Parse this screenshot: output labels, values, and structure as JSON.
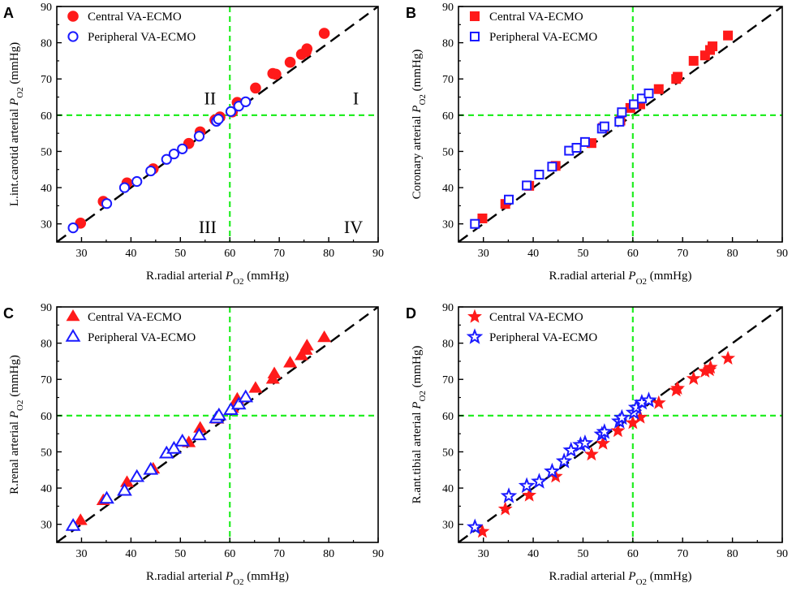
{
  "chart_data": [
    {
      "type": "scatter",
      "panel": "A",
      "marker": "circle",
      "xlabel": {
        "pre": "R.radial arterial ",
        "var": "P",
        "sub": "O2",
        "post": " (mmHg)"
      },
      "ylabel": {
        "pre": "L.int.carotid arterial ",
        "var": "P",
        "sub": "O2",
        "post": " (mmHg)"
      },
      "xlim": [
        25,
        90
      ],
      "ylim": [
        25,
        90
      ],
      "xticks": [
        "30",
        "40",
        "50",
        "60",
        "70",
        "80",
        "90"
      ],
      "yticks": [
        "30",
        "40",
        "50",
        "60",
        "70",
        "80",
        "90"
      ],
      "threshold": 60,
      "identity_line": true,
      "legend_position": "top-left",
      "quadrant_labels": {
        "I": "I",
        "II": "II",
        "III": "III",
        "IV": "IV"
      },
      "series": [
        {
          "name": "Central VA-ECMO",
          "color": "#ff1a1a",
          "filled": true,
          "points": [
            [
              29.8,
              30.2
            ],
            [
              34.4,
              36.2
            ],
            [
              39.2,
              41.3
            ],
            [
              44.5,
              45.2
            ],
            [
              51.7,
              52.2
            ],
            [
              54.0,
              55.4
            ],
            [
              57.0,
              58.7
            ],
            [
              58.0,
              59.5
            ],
            [
              60.5,
              60.9
            ],
            [
              61.5,
              63.5
            ],
            [
              65.2,
              67.5
            ],
            [
              68.7,
              71.5
            ],
            [
              69.3,
              71.3
            ],
            [
              72.2,
              74.6
            ],
            [
              74.5,
              76.8
            ],
            [
              75.4,
              77.5
            ],
            [
              75.6,
              78.3
            ],
            [
              79.1,
              82.6
            ]
          ]
        },
        {
          "name": "Peripheral VA-ECMO",
          "color": "#1a1aff",
          "filled": false,
          "points": [
            [
              28.3,
              28.9
            ],
            [
              35.1,
              35.6
            ],
            [
              38.7,
              40.0
            ],
            [
              41.2,
              41.7
            ],
            [
              44.0,
              44.6
            ],
            [
              47.2,
              47.8
            ],
            [
              48.7,
              49.3
            ],
            [
              50.4,
              50.7
            ],
            [
              53.8,
              54.2
            ],
            [
              57.3,
              58.3
            ],
            [
              57.7,
              58.9
            ],
            [
              60.2,
              61.0
            ],
            [
              61.8,
              62.5
            ],
            [
              63.2,
              63.7
            ]
          ]
        }
      ]
    },
    {
      "type": "scatter",
      "panel": "B",
      "marker": "square",
      "xlabel": {
        "pre": "R.radial arterial ",
        "var": "P",
        "sub": "O2",
        "post": " (mmHg)"
      },
      "ylabel": {
        "pre": "Coronary arterial ",
        "var": "P",
        "sub": "O2",
        "post": " (mmHg)"
      },
      "xlim": [
        25,
        90
      ],
      "ylim": [
        25,
        90
      ],
      "xticks": [
        "30",
        "40",
        "50",
        "60",
        "70",
        "80",
        "90"
      ],
      "yticks": [
        "30",
        "40",
        "50",
        "60",
        "70",
        "80",
        "90"
      ],
      "threshold": 60,
      "identity_line": true,
      "legend_position": "top-left",
      "series": [
        {
          "name": "Central VA-ECMO",
          "color": "#ff1a1a",
          "filled": true,
          "points": [
            [
              29.8,
              31.5
            ],
            [
              34.4,
              35.5
            ],
            [
              39.2,
              40.5
            ],
            [
              44.5,
              46.0
            ],
            [
              51.7,
              52.3
            ],
            [
              54.0,
              56.5
            ],
            [
              57.5,
              58.5
            ],
            [
              59.5,
              62.0
            ],
            [
              61.5,
              63.0
            ],
            [
              65.2,
              67.2
            ],
            [
              68.7,
              70.0
            ],
            [
              69.0,
              70.6
            ],
            [
              72.2,
              75.0
            ],
            [
              74.5,
              76.5
            ],
            [
              75.5,
              78.0
            ],
            [
              76.0,
              79.0
            ],
            [
              79.1,
              82.0
            ]
          ]
        },
        {
          "name": "Peripheral VA-ECMO",
          "color": "#1a1aff",
          "filled": false,
          "points": [
            [
              28.3,
              30.0
            ],
            [
              35.1,
              36.7
            ],
            [
              38.7,
              40.6
            ],
            [
              41.2,
              43.6
            ],
            [
              43.8,
              45.8
            ],
            [
              47.2,
              50.2
            ],
            [
              48.7,
              51.0
            ],
            [
              50.4,
              52.6
            ],
            [
              53.8,
              56.3
            ],
            [
              54.3,
              56.9
            ],
            [
              57.3,
              58.2
            ],
            [
              57.8,
              60.8
            ],
            [
              60.2,
              63.0
            ],
            [
              61.8,
              64.6
            ],
            [
              63.2,
              66.0
            ]
          ]
        }
      ]
    },
    {
      "type": "scatter",
      "panel": "C",
      "marker": "triangle",
      "xlabel": {
        "pre": "R.radial arterial ",
        "var": "P",
        "sub": "O2",
        "post": " (mmHg)"
      },
      "ylabel": {
        "pre": "R.renal arterial ",
        "var": "P",
        "sub": "O2",
        "post": " (mmHg)"
      },
      "xlim": [
        25,
        90
      ],
      "ylim": [
        25,
        90
      ],
      "xticks": [
        "30",
        "40",
        "50",
        "60",
        "70",
        "80",
        "90"
      ],
      "yticks": [
        "30",
        "40",
        "50",
        "60",
        "70",
        "80",
        "90"
      ],
      "threshold": 60,
      "identity_line": true,
      "legend_position": "top-left",
      "series": [
        {
          "name": "Central VA-ECMO",
          "color": "#ff1a1a",
          "filled": true,
          "points": [
            [
              29.8,
              31.0
            ],
            [
              34.4,
              36.5
            ],
            [
              39.2,
              41.5
            ],
            [
              44.5,
              45.2
            ],
            [
              51.7,
              52.5
            ],
            [
              54.0,
              56.5
            ],
            [
              57.5,
              59.0
            ],
            [
              60.5,
              62.0
            ],
            [
              61.5,
              64.5
            ],
            [
              65.2,
              67.5
            ],
            [
              68.7,
              70.0
            ],
            [
              69.0,
              71.5
            ],
            [
              72.2,
              74.5
            ],
            [
              74.5,
              76.5
            ],
            [
              75.4,
              78.0
            ],
            [
              75.6,
              79.2
            ],
            [
              79.1,
              81.5
            ]
          ]
        },
        {
          "name": "Peripheral VA-ECMO",
          "color": "#1a1aff",
          "filled": false,
          "points": [
            [
              28.3,
              29.5
            ],
            [
              35.1,
              37.0
            ],
            [
              38.7,
              39.2
            ],
            [
              41.2,
              43.0
            ],
            [
              44.0,
              45.0
            ],
            [
              47.2,
              49.5
            ],
            [
              48.7,
              50.8
            ],
            [
              50.4,
              52.8
            ],
            [
              53.8,
              54.5
            ],
            [
              57.3,
              59.2
            ],
            [
              57.8,
              60.0
            ],
            [
              60.2,
              61.5
            ],
            [
              61.8,
              63.0
            ],
            [
              63.2,
              65.0
            ]
          ]
        }
      ]
    },
    {
      "type": "scatter",
      "panel": "D",
      "marker": "star",
      "xlabel": {
        "pre": "R.radial arterial ",
        "var": "P",
        "sub": "O2",
        "post": " (mmHg)"
      },
      "ylabel": {
        "pre": "R.ant.tibial arterial ",
        "var": "P",
        "sub": "O2",
        "post": " (mmHg)"
      },
      "xlim": [
        25,
        90
      ],
      "ylim": [
        25,
        90
      ],
      "xticks": [
        "30",
        "40",
        "50",
        "60",
        "70",
        "80",
        "90"
      ],
      "yticks": [
        "30",
        "40",
        "50",
        "60",
        "70",
        "80",
        "90"
      ],
      "threshold": 60,
      "identity_line": true,
      "legend_position": "top-left",
      "series": [
        {
          "name": "Central VA-ECMO",
          "color": "#ff1a1a",
          "filled": true,
          "points": [
            [
              29.8,
              28.0
            ],
            [
              34.4,
              34.2
            ],
            [
              39.2,
              38.0
            ],
            [
              44.5,
              43.2
            ],
            [
              51.7,
              49.3
            ],
            [
              54.0,
              52.3
            ],
            [
              57.0,
              55.8
            ],
            [
              60.0,
              58.0
            ],
            [
              61.5,
              59.5
            ],
            [
              65.2,
              63.5
            ],
            [
              68.7,
              67.0
            ],
            [
              69.0,
              67.5
            ],
            [
              72.2,
              70.2
            ],
            [
              74.5,
              72.2
            ],
            [
              75.4,
              72.6
            ],
            [
              75.6,
              73.3
            ],
            [
              79.1,
              75.8
            ]
          ]
        },
        {
          "name": "Peripheral VA-ECMO",
          "color": "#1a1aff",
          "filled": false,
          "points": [
            [
              28.3,
              29.2
            ],
            [
              35.1,
              37.8
            ],
            [
              38.7,
              40.6
            ],
            [
              41.2,
              41.8
            ],
            [
              43.8,
              44.6
            ],
            [
              46.2,
              47.4
            ],
            [
              47.6,
              50.4
            ],
            [
              49.5,
              51.9
            ],
            [
              50.4,
              52.4
            ],
            [
              53.8,
              54.8
            ],
            [
              54.3,
              55.5
            ],
            [
              57.3,
              58.4
            ],
            [
              57.8,
              59.4
            ],
            [
              60.2,
              60.8
            ],
            [
              60.7,
              62.2
            ],
            [
              61.8,
              63.6
            ],
            [
              63.2,
              64.2
            ]
          ]
        }
      ]
    }
  ]
}
